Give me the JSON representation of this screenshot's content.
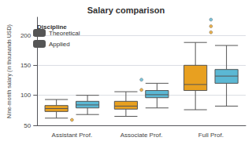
{
  "chart_data": {
    "type": "boxplot",
    "title": "Salary comparison",
    "ylabel": "Nine-month salary (in thousands USD)",
    "categories": [
      "Assistant Prof.",
      "Associate Prof.",
      "Full Prof."
    ],
    "legend_title": "Discipline",
    "legend": "upper left",
    "grid": true,
    "ylim": [
      50,
      230
    ],
    "yticks": [
      50,
      100,
      150,
      200
    ],
    "series": [
      {
        "name": "Theoretical",
        "color": "#E8A020",
        "values": [
          [
            62,
            73,
            78,
            83,
            93
          ],
          [
            65,
            77,
            82,
            90,
            106
          ],
          [
            76,
            108,
            118,
            150,
            188
          ]
        ],
        "fliers": [
          [
            59
          ],
          [
            109
          ],
          [
            205,
            215
          ]
        ]
      },
      {
        "name": "Applied",
        "color": "#5BB8D4",
        "values": [
          [
            68,
            79,
            84,
            90,
            100
          ],
          [
            79,
            96,
            101,
            108,
            120
          ],
          [
            82,
            120,
            132,
            143,
            183
          ]
        ],
        "fliers": [
          [],
          [
            126
          ],
          [
            226
          ]
        ]
      }
    ]
  }
}
